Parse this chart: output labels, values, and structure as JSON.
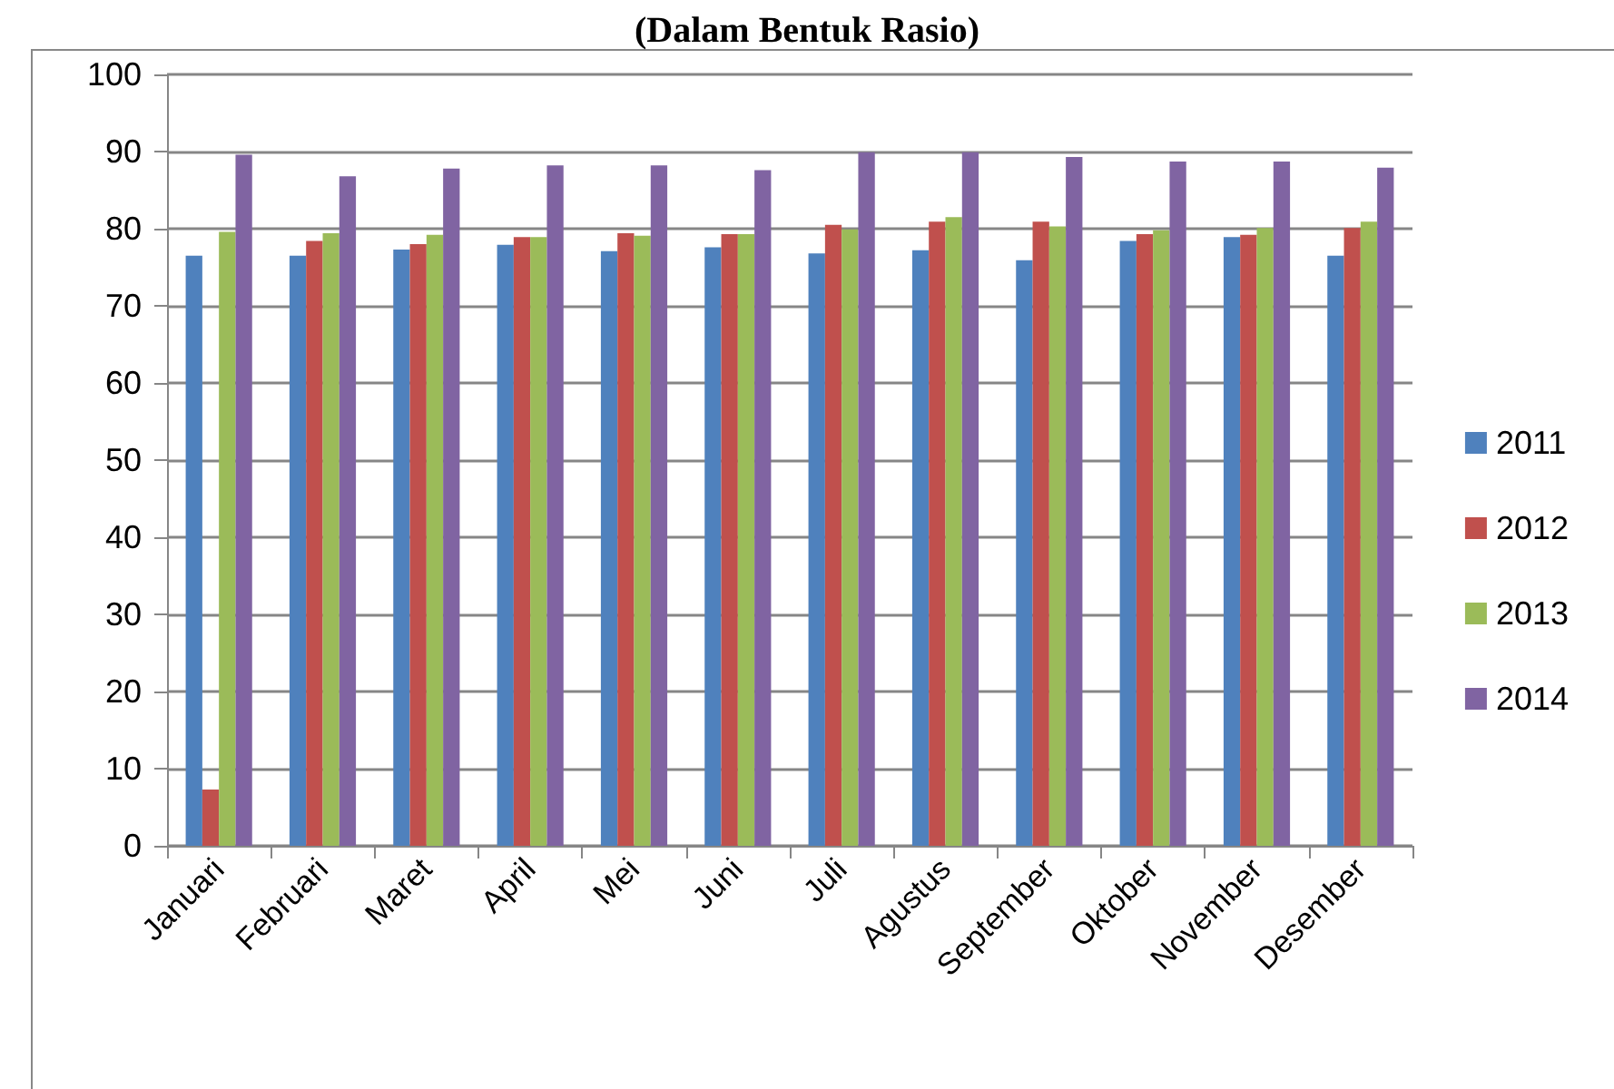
{
  "chart_data": {
    "type": "bar",
    "title": "(Dalam Bentuk Rasio)",
    "categories": [
      "Januari",
      "Februari",
      "Maret",
      "April",
      "Mei",
      "Juni",
      "Juli",
      "Agustus",
      "September",
      "Oktober",
      "November",
      "Desember"
    ],
    "series": [
      {
        "name": "2011",
        "color": "#4f81bd",
        "values": [
          76.5,
          76.5,
          77.3,
          77.9,
          77.1,
          77.6,
          76.8,
          77.2,
          75.9,
          78.4,
          78.9,
          76.5
        ]
      },
      {
        "name": "2012",
        "color": "#c0504d",
        "values": [
          7.3,
          78.4,
          78.0,
          78.9,
          79.4,
          79.3,
          80.5,
          80.9,
          80.9,
          79.3,
          79.2,
          80.1
        ]
      },
      {
        "name": "2013",
        "color": "#9bbb59",
        "values": [
          79.6,
          79.4,
          79.2,
          78.9,
          79.1,
          79.3,
          79.9,
          81.5,
          80.3,
          79.8,
          80.1,
          80.9
        ]
      },
      {
        "name": "2014",
        "color": "#8064a2",
        "values": [
          89.6,
          86.8,
          87.8,
          88.2,
          88.2,
          87.6,
          89.9,
          89.9,
          89.3,
          88.7,
          88.7,
          87.9
        ]
      }
    ],
    "ylim": [
      0,
      100
    ],
    "yticks": [
      0,
      10,
      20,
      30,
      40,
      50,
      60,
      70,
      80,
      90,
      100
    ],
    "grid": "y",
    "legend": "right"
  }
}
